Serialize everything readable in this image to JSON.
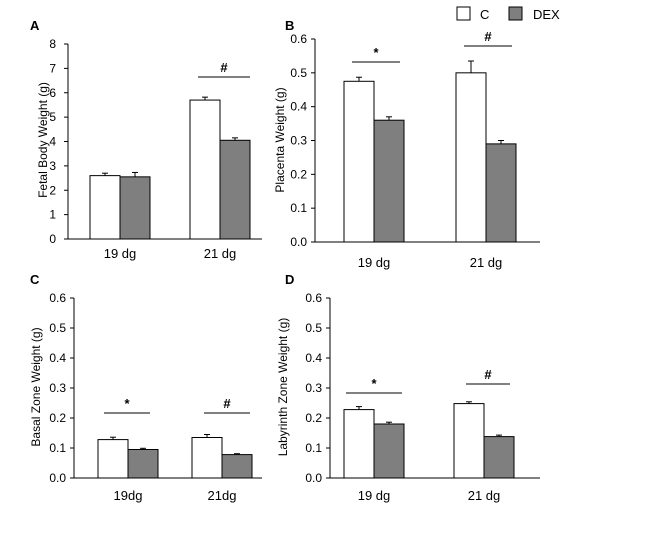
{
  "legend": {
    "position": "top-right",
    "items": [
      {
        "name": "C",
        "color": "#ffffff"
      },
      {
        "name": "DEX",
        "color": "#7f7f7f"
      }
    ]
  },
  "chart_data": [
    {
      "panel": "A",
      "type": "bar",
      "ylabel": "Fetal Body Weight (g)",
      "ylim": [
        0,
        8
      ],
      "yticks": [
        "0",
        "1",
        "2",
        "3",
        "4",
        "5",
        "6",
        "7",
        "8"
      ],
      "ytick_values": [
        0,
        1,
        2,
        3,
        4,
        5,
        6,
        7,
        8
      ],
      "categories": [
        "19 dg",
        "21 dg"
      ],
      "series": [
        {
          "name": "C",
          "values": [
            2.6,
            5.7
          ],
          "errors": [
            0.1,
            0.12
          ]
        },
        {
          "name": "DEX",
          "values": [
            2.55,
            4.05
          ],
          "errors": [
            0.18,
            0.1
          ]
        }
      ],
      "annotations": [
        "",
        "#"
      ]
    },
    {
      "panel": "B",
      "type": "bar",
      "ylabel": "Placenta Weight (g)",
      "ylim": [
        0,
        0.6
      ],
      "yticks": [
        "0.0",
        "0.1",
        "0.2",
        "0.3",
        "0.4",
        "0.5",
        "0.6"
      ],
      "ytick_values": [
        0,
        0.1,
        0.2,
        0.3,
        0.4,
        0.5,
        0.6
      ],
      "categories": [
        "19 dg",
        "21 dg"
      ],
      "series": [
        {
          "name": "C",
          "values": [
            0.475,
            0.5
          ],
          "errors": [
            0.012,
            0.035
          ]
        },
        {
          "name": "DEX",
          "values": [
            0.36,
            0.29
          ],
          "errors": [
            0.01,
            0.01
          ]
        }
      ],
      "annotations": [
        "*",
        "#"
      ]
    },
    {
      "panel": "C",
      "type": "bar",
      "ylabel": "Basal Zone Weight (g)",
      "ylim": [
        0,
        0.6
      ],
      "yticks": [
        "0.0",
        "0.1",
        "0.2",
        "0.3",
        "0.4",
        "0.5",
        "0.6"
      ],
      "ytick_values": [
        0,
        0.1,
        0.2,
        0.3,
        0.4,
        0.5,
        0.6
      ],
      "categories": [
        "19dg",
        "21dg"
      ],
      "series": [
        {
          "name": "C",
          "values": [
            0.128,
            0.135
          ],
          "errors": [
            0.008,
            0.01
          ]
        },
        {
          "name": "DEX",
          "values": [
            0.095,
            0.078
          ],
          "errors": [
            0.004,
            0.003
          ]
        }
      ],
      "annotations": [
        "*",
        "#"
      ]
    },
    {
      "panel": "D",
      "type": "bar",
      "ylabel": "Labyrinth Zone Weight (g)",
      "ylim": [
        0,
        0.6
      ],
      "yticks": [
        "0.0",
        "0.1",
        "0.2",
        "0.3",
        "0.4",
        "0.5",
        "0.6"
      ],
      "ytick_values": [
        0,
        0.1,
        0.2,
        0.3,
        0.4,
        0.5,
        0.6
      ],
      "categories": [
        "19  dg",
        "21  dg"
      ],
      "series": [
        {
          "name": "C",
          "values": [
            0.228,
            0.248
          ],
          "errors": [
            0.01,
            0.006
          ]
        },
        {
          "name": "DEX",
          "values": [
            0.18,
            0.138
          ],
          "errors": [
            0.006,
            0.005
          ]
        }
      ],
      "annotations": [
        "*",
        "#"
      ]
    }
  ]
}
